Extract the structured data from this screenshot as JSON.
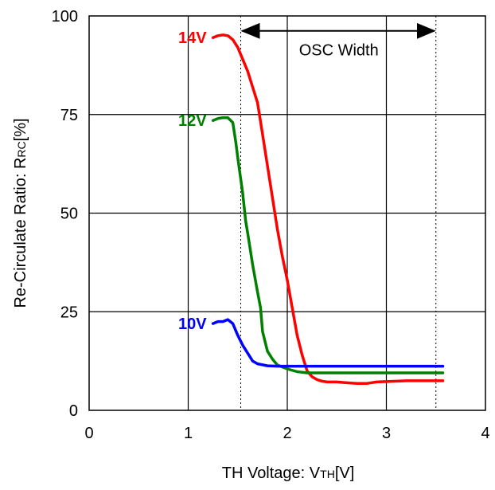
{
  "chart_data": {
    "type": "line",
    "xlabel": {
      "main": "TH Voltage: V",
      "sub": "TH",
      "unit": "[V]"
    },
    "ylabel": {
      "main": "Re-Circulate Ratio: R",
      "sub": "RC",
      "unit": "[%]"
    },
    "xlim": [
      0,
      4
    ],
    "ylim": [
      0,
      100
    ],
    "x_ticks": [
      "0",
      "1",
      "2",
      "3",
      "4"
    ],
    "y_ticks": [
      "0",
      "25",
      "50",
      "75",
      "100"
    ],
    "grid": true,
    "series": [
      {
        "name": "14V",
        "color": "#ff0000",
        "x": [
          1.25,
          1.3,
          1.35,
          1.4,
          1.45,
          1.5,
          1.55,
          1.6,
          1.65,
          1.7,
          1.75,
          1.8,
          1.85,
          1.9,
          1.95,
          2.0,
          2.05,
          2.1,
          2.15,
          2.2,
          2.25,
          2.3,
          2.35,
          2.4,
          2.5,
          2.6,
          2.7,
          2.8,
          2.9,
          3.0,
          3.2,
          3.4,
          3.57
        ],
        "y": [
          94.5,
          95,
          95.2,
          95,
          94,
          92,
          89,
          86,
          82,
          78,
          70,
          62,
          54,
          46,
          39,
          33,
          26,
          19,
          14,
          10,
          8.5,
          7.8,
          7.4,
          7.2,
          7.2,
          7,
          6.8,
          6.8,
          7.2,
          7.3,
          7.5,
          7.5,
          7.5
        ]
      },
      {
        "name": "12V",
        "color": "#008000",
        "x": [
          1.25,
          1.3,
          1.35,
          1.4,
          1.45,
          1.48,
          1.5,
          1.55,
          1.58,
          1.6,
          1.65,
          1.7,
          1.73,
          1.75,
          1.78,
          1.8,
          1.85,
          1.9,
          1.95,
          2.0,
          2.1,
          2.2,
          2.5,
          3.0,
          3.57
        ],
        "y": [
          73.5,
          74,
          74.2,
          74.2,
          73,
          68,
          64,
          55,
          48,
          45,
          37,
          30,
          26,
          20,
          17,
          15,
          13,
          11.5,
          11,
          10.5,
          9.8,
          9.5,
          9.5,
          9.5,
          9.5
        ]
      },
      {
        "name": "10V",
        "color": "#0000ff",
        "x": [
          1.25,
          1.3,
          1.35,
          1.4,
          1.45,
          1.5,
          1.55,
          1.6,
          1.65,
          1.7,
          1.8,
          1.9,
          2.0,
          2.5,
          3.0,
          3.57
        ],
        "y": [
          22,
          22.5,
          22.5,
          23,
          22,
          19,
          16.5,
          14.5,
          12.5,
          11.8,
          11.3,
          11.2,
          11.2,
          11.2,
          11.2,
          11.2
        ]
      }
    ],
    "reference_lines": [
      1.53,
      3.5
    ],
    "annotations": [
      {
        "text": "OSC Width",
        "x": 2.52,
        "y": 90
      }
    ]
  }
}
